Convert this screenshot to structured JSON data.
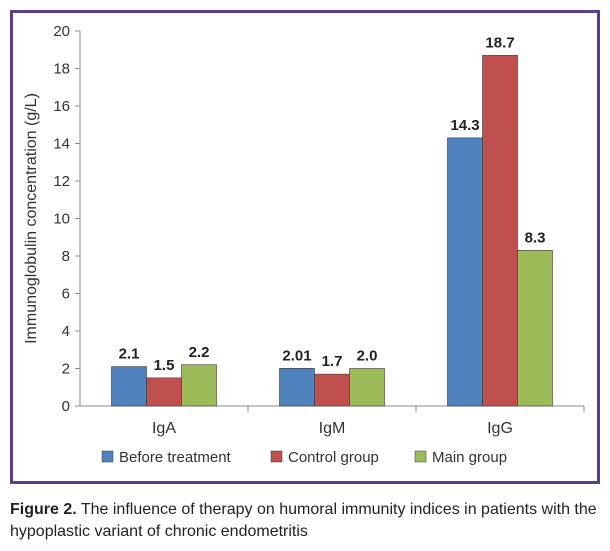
{
  "chart_data": {
    "type": "bar",
    "categories": [
      "IgA",
      "IgM",
      "IgG"
    ],
    "series": [
      {
        "name": "Before treatment",
        "values": [
          2.1,
          2.01,
          14.3
        ],
        "labels": [
          "2.1",
          "2.01",
          "14.3"
        ],
        "color": "#4f81bd"
      },
      {
        "name": "Control group",
        "values": [
          1.5,
          1.7,
          18.7
        ],
        "labels": [
          "1.5",
          "1.7",
          "18.7"
        ],
        "color": "#c0504d"
      },
      {
        "name": "Main group",
        "values": [
          2.2,
          2.0,
          8.3
        ],
        "labels": [
          "2.2",
          "2.0",
          "8.3"
        ],
        "color": "#9bbb59"
      }
    ],
    "ylabel": "Immunoglobulin concentration (g/L)",
    "xlabel": "",
    "ylim": [
      0,
      20
    ],
    "yticks": [
      "0",
      "2",
      "4",
      "6",
      "8",
      "10",
      "12",
      "14",
      "16",
      "18",
      "20"
    ],
    "grid": false,
    "legend_position": "bottom"
  },
  "caption": {
    "label": "Figure 2.",
    "text": " The influence of therapy on humoral immunity indices in patients with the hypoplastic variant of chronic endometritis"
  }
}
